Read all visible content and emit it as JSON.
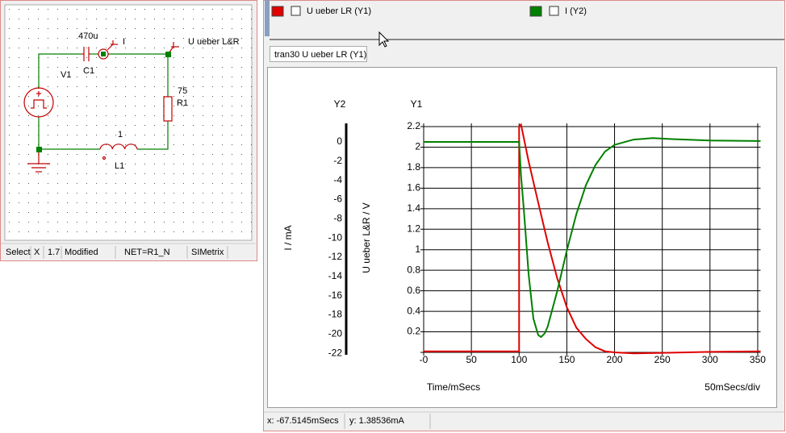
{
  "schematic": {
    "labels": {
      "c_value": "470u",
      "c_name": "C1",
      "probe_i": "I",
      "probe_u": "U ueber L&R",
      "v_name": "V1",
      "r_value": "75",
      "r_name": "R1",
      "l_value": "1",
      "l_name": "L1"
    },
    "status": [
      "Select",
      "X",
      "1.7",
      "Modified",
      "NET=R1_N",
      "SIMetrix"
    ]
  },
  "plot": {
    "tab": "tran30 U ueber LR (Y1)",
    "y2_title": "Y2",
    "y1_title": "Y1",
    "y2_label": "I / mA",
    "y1_label": "U ueber L&R / V",
    "x_label": "Time/mSecs",
    "div_label": "50mSecs/div",
    "xlim": [
      0,
      353
    ],
    "xticks": [
      {
        "value": 0,
        "label": "-0"
      },
      50,
      100,
      150,
      200,
      250,
      300,
      350
    ],
    "y1lim": [
      0,
      2.2
    ],
    "y1ticks": [
      0.2,
      0.4,
      0.6,
      0.8,
      1,
      1.2,
      1.4,
      1.6,
      1.8,
      2,
      2.2
    ],
    "y2lim": [
      -21.9,
      1.6
    ],
    "y2ticks": [
      0,
      -2,
      -4,
      -6,
      -8,
      -10,
      -12,
      -14,
      -16,
      -18,
      -20,
      -22
    ],
    "grid": true,
    "series": [
      {
        "name": "U ueber LR (Y1)",
        "color": "#e00000",
        "axis": "y1",
        "x": [
          0,
          100,
          100,
          102,
          110,
          120,
          130,
          140,
          150,
          160,
          170,
          180,
          190,
          200,
          220,
          250,
          300,
          353
        ],
        "values": [
          0.01,
          0.01,
          2.2,
          2.22,
          1.86,
          1.46,
          1.07,
          0.72,
          0.44,
          0.24,
          0.13,
          0.05,
          0.01,
          0,
          -0.01,
          -0.005,
          0.005,
          0.01
        ]
      },
      {
        "name": "I (Y2)",
        "color": "#008000",
        "axis": "y2",
        "x": [
          0,
          100,
          102,
          105,
          110,
          115,
          120,
          123,
          127,
          130,
          140,
          150,
          160,
          170,
          180,
          190,
          200,
          220,
          240,
          260,
          300,
          353
        ],
        "values": [
          0,
          0,
          -3.5,
          -7.1,
          -13.8,
          -18.4,
          -20.1,
          -20.3,
          -19.9,
          -19.2,
          -15.5,
          -11.3,
          -7.5,
          -4.5,
          -2.4,
          -1.0,
          -0.3,
          0.25,
          0.4,
          0.3,
          0.15,
          0.1
        ]
      }
    ]
  },
  "status": [
    "x: -67.5145mSecs",
    "y: 1.38536mA"
  ]
}
